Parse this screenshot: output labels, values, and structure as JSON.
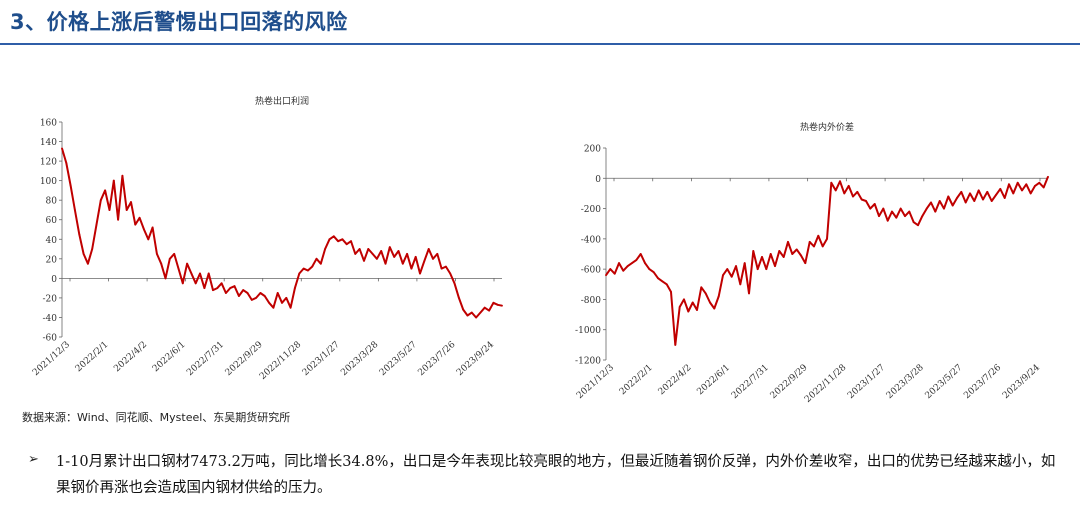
{
  "page": {
    "title": "3、价格上涨后警惕出口回落的风险",
    "source": "数据来源：Wind、同花顺、Mysteel、东吴期货研究所",
    "bullet_symbol": "➢",
    "paragraph": "1-10月累计出口钢材7473.2万吨，同比增长34.8%，出口是今年表现比较亮眼的地方，但最近随着钢价反弹，内外价差收窄，出口的优势已经越来越小，如果钢价再涨也会造成国内钢材供给的压力。"
  },
  "colors": {
    "title": "#1f4e8c",
    "line": "#c00000",
    "axis": "#555555"
  },
  "chart_data": [
    {
      "type": "line",
      "title": "热卷出口利润",
      "ylim": [
        -60,
        160
      ],
      "yticks": [
        -60,
        -40,
        -20,
        0,
        20,
        40,
        60,
        80,
        100,
        120,
        140,
        160
      ],
      "xticks": [
        "2021/12/3",
        "2022/2/1",
        "2022/4/2",
        "2022/6/1",
        "2022/7/31",
        "2022/9/29",
        "2022/11/28",
        "2023/1/27",
        "2023/3/28",
        "2023/5/27",
        "2023/7/26",
        "2023/9/24"
      ],
      "x_range": [
        "2021-12-03",
        "2023-11-17"
      ],
      "series": [
        {
          "points": [
            [
              "2021-12-03",
              133
            ],
            [
              "2021-12-10",
              118
            ],
            [
              "2021-12-17",
              95
            ],
            [
              "2021-12-24",
              70
            ],
            [
              "2021-12-31",
              45
            ],
            [
              "2022-01-07",
              25
            ],
            [
              "2022-01-14",
              15
            ],
            [
              "2022-01-21",
              30
            ],
            [
              "2022-01-28",
              55
            ],
            [
              "2022-02-04",
              80
            ],
            [
              "2022-02-11",
              90
            ],
            [
              "2022-02-18",
              70
            ],
            [
              "2022-02-25",
              100
            ],
            [
              "2022-03-04",
              60
            ],
            [
              "2022-03-11",
              105
            ],
            [
              "2022-03-18",
              70
            ],
            [
              "2022-03-25",
              78
            ],
            [
              "2022-04-01",
              55
            ],
            [
              "2022-04-08",
              62
            ],
            [
              "2022-04-15",
              50
            ],
            [
              "2022-04-22",
              40
            ],
            [
              "2022-04-29",
              52
            ],
            [
              "2022-05-06",
              25
            ],
            [
              "2022-05-13",
              15
            ],
            [
              "2022-05-20",
              0
            ],
            [
              "2022-05-27",
              20
            ],
            [
              "2022-06-03",
              25
            ],
            [
              "2022-06-10",
              10
            ],
            [
              "2022-06-17",
              -5
            ],
            [
              "2022-06-24",
              15
            ],
            [
              "2022-07-01",
              5
            ],
            [
              "2022-07-08",
              -5
            ],
            [
              "2022-07-15",
              5
            ],
            [
              "2022-07-22",
              -10
            ],
            [
              "2022-07-29",
              5
            ],
            [
              "2022-08-05",
              -12
            ],
            [
              "2022-08-12",
              -10
            ],
            [
              "2022-08-19",
              -5
            ],
            [
              "2022-08-26",
              -15
            ],
            [
              "2022-09-02",
              -10
            ],
            [
              "2022-09-09",
              -8
            ],
            [
              "2022-09-16",
              -18
            ],
            [
              "2022-09-23",
              -12
            ],
            [
              "2022-09-30",
              -15
            ],
            [
              "2022-10-07",
              -22
            ],
            [
              "2022-10-14",
              -20
            ],
            [
              "2022-10-21",
              -15
            ],
            [
              "2022-10-28",
              -18
            ],
            [
              "2022-11-04",
              -25
            ],
            [
              "2022-11-11",
              -30
            ],
            [
              "2022-11-18",
              -15
            ],
            [
              "2022-11-25",
              -25
            ],
            [
              "2022-12-02",
              -20
            ],
            [
              "2022-12-09",
              -30
            ],
            [
              "2022-12-16",
              -10
            ],
            [
              "2022-12-23",
              5
            ],
            [
              "2022-12-30",
              10
            ],
            [
              "2023-01-06",
              8
            ],
            [
              "2023-01-13",
              12
            ],
            [
              "2023-01-20",
              20
            ],
            [
              "2023-01-27",
              15
            ],
            [
              "2023-02-03",
              30
            ],
            [
              "2023-02-10",
              40
            ],
            [
              "2023-02-17",
              43
            ],
            [
              "2023-02-24",
              38
            ],
            [
              "2023-03-03",
              40
            ],
            [
              "2023-03-10",
              35
            ],
            [
              "2023-03-17",
              38
            ],
            [
              "2023-03-24",
              25
            ],
            [
              "2023-03-31",
              30
            ],
            [
              "2023-04-07",
              18
            ],
            [
              "2023-04-14",
              30
            ],
            [
              "2023-04-21",
              25
            ],
            [
              "2023-04-28",
              20
            ],
            [
              "2023-05-05",
              28
            ],
            [
              "2023-05-12",
              15
            ],
            [
              "2023-05-19",
              32
            ],
            [
              "2023-05-26",
              22
            ],
            [
              "2023-06-02",
              28
            ],
            [
              "2023-06-09",
              15
            ],
            [
              "2023-06-16",
              25
            ],
            [
              "2023-06-23",
              10
            ],
            [
              "2023-06-30",
              22
            ],
            [
              "2023-07-07",
              5
            ],
            [
              "2023-07-14",
              18
            ],
            [
              "2023-07-21",
              30
            ],
            [
              "2023-07-28",
              20
            ],
            [
              "2023-08-04",
              25
            ],
            [
              "2023-08-11",
              10
            ],
            [
              "2023-08-18",
              12
            ],
            [
              "2023-08-25",
              5
            ],
            [
              "2023-09-01",
              -5
            ],
            [
              "2023-09-08",
              -20
            ],
            [
              "2023-09-15",
              -32
            ],
            [
              "2023-09-22",
              -38
            ],
            [
              "2023-09-29",
              -35
            ],
            [
              "2023-10-06",
              -40
            ],
            [
              "2023-10-13",
              -35
            ],
            [
              "2023-10-20",
              -30
            ],
            [
              "2023-10-27",
              -33
            ],
            [
              "2023-11-03",
              -25
            ],
            [
              "2023-11-10",
              -27
            ],
            [
              "2023-11-17",
              -28
            ]
          ]
        }
      ]
    },
    {
      "type": "line",
      "title": "热卷内外价差",
      "ylim": [
        -1200,
        200
      ],
      "yticks": [
        -1200,
        -1000,
        -800,
        -600,
        -400,
        -200,
        0,
        200
      ],
      "xticks": [
        "2021/12/3",
        "2022/2/1",
        "2022/4/2",
        "2022/6/1",
        "2022/7/31",
        "2022/9/29",
        "2022/11/28",
        "2023/1/27",
        "2023/3/28",
        "2023/5/27",
        "2023/7/26",
        "2023/9/24"
      ],
      "x_range": [
        "2021-12-03",
        "2023-11-17"
      ],
      "series": [
        {
          "points": [
            [
              "2021-12-03",
              -640
            ],
            [
              "2021-12-10",
              -600
            ],
            [
              "2021-12-17",
              -630
            ],
            [
              "2021-12-24",
              -560
            ],
            [
              "2021-12-31",
              -610
            ],
            [
              "2022-01-07",
              -580
            ],
            [
              "2022-01-14",
              -560
            ],
            [
              "2022-01-21",
              -540
            ],
            [
              "2022-01-28",
              -500
            ],
            [
              "2022-02-04",
              -560
            ],
            [
              "2022-02-11",
              -600
            ],
            [
              "2022-02-18",
              -620
            ],
            [
              "2022-02-25",
              -660
            ],
            [
              "2022-03-04",
              -680
            ],
            [
              "2022-03-11",
              -700
            ],
            [
              "2022-03-18",
              -750
            ],
            [
              "2022-03-25",
              -1100
            ],
            [
              "2022-04-01",
              -850
            ],
            [
              "2022-04-08",
              -800
            ],
            [
              "2022-04-15",
              -880
            ],
            [
              "2022-04-22",
              -820
            ],
            [
              "2022-04-29",
              -870
            ],
            [
              "2022-05-06",
              -720
            ],
            [
              "2022-05-13",
              -760
            ],
            [
              "2022-05-20",
              -820
            ],
            [
              "2022-05-27",
              -860
            ],
            [
              "2022-06-03",
              -780
            ],
            [
              "2022-06-10",
              -640
            ],
            [
              "2022-06-17",
              -600
            ],
            [
              "2022-06-24",
              -650
            ],
            [
              "2022-07-01",
              -580
            ],
            [
              "2022-07-08",
              -700
            ],
            [
              "2022-07-15",
              -560
            ],
            [
              "2022-07-22",
              -760
            ],
            [
              "2022-07-29",
              -480
            ],
            [
              "2022-08-05",
              -600
            ],
            [
              "2022-08-12",
              -520
            ],
            [
              "2022-08-19",
              -600
            ],
            [
              "2022-08-26",
              -500
            ],
            [
              "2022-09-02",
              -580
            ],
            [
              "2022-09-09",
              -480
            ],
            [
              "2022-09-16",
              -520
            ],
            [
              "2022-09-23",
              -420
            ],
            [
              "2022-09-30",
              -500
            ],
            [
              "2022-10-07",
              -470
            ],
            [
              "2022-10-14",
              -510
            ],
            [
              "2022-10-21",
              -560
            ],
            [
              "2022-10-28",
              -420
            ],
            [
              "2022-11-04",
              -450
            ],
            [
              "2022-11-11",
              -380
            ],
            [
              "2022-11-18",
              -450
            ],
            [
              "2022-11-25",
              -400
            ],
            [
              "2022-12-02",
              -30
            ],
            [
              "2022-12-09",
              -80
            ],
            [
              "2022-12-16",
              -20
            ],
            [
              "2022-12-23",
              -100
            ],
            [
              "2022-12-30",
              -50
            ],
            [
              "2023-01-06",
              -120
            ],
            [
              "2023-01-13",
              -90
            ],
            [
              "2023-01-20",
              -140
            ],
            [
              "2023-01-27",
              -150
            ],
            [
              "2023-02-03",
              -200
            ],
            [
              "2023-02-10",
              -170
            ],
            [
              "2023-02-17",
              -250
            ],
            [
              "2023-02-24",
              -200
            ],
            [
              "2023-03-03",
              -280
            ],
            [
              "2023-03-10",
              -220
            ],
            [
              "2023-03-17",
              -260
            ],
            [
              "2023-03-24",
              -200
            ],
            [
              "2023-03-31",
              -250
            ],
            [
              "2023-04-07",
              -220
            ],
            [
              "2023-04-14",
              -290
            ],
            [
              "2023-04-21",
              -310
            ],
            [
              "2023-04-28",
              -250
            ],
            [
              "2023-05-05",
              -200
            ],
            [
              "2023-05-12",
              -160
            ],
            [
              "2023-05-19",
              -220
            ],
            [
              "2023-05-26",
              -150
            ],
            [
              "2023-06-02",
              -200
            ],
            [
              "2023-06-09",
              -120
            ],
            [
              "2023-06-16",
              -180
            ],
            [
              "2023-06-23",
              -130
            ],
            [
              "2023-06-30",
              -90
            ],
            [
              "2023-07-07",
              -160
            ],
            [
              "2023-07-14",
              -100
            ],
            [
              "2023-07-21",
              -150
            ],
            [
              "2023-07-28",
              -80
            ],
            [
              "2023-08-04",
              -140
            ],
            [
              "2023-08-11",
              -90
            ],
            [
              "2023-08-18",
              -150
            ],
            [
              "2023-08-25",
              -110
            ],
            [
              "2023-09-01",
              -70
            ],
            [
              "2023-09-08",
              -130
            ],
            [
              "2023-09-15",
              -40
            ],
            [
              "2023-09-22",
              -100
            ],
            [
              "2023-09-29",
              -30
            ],
            [
              "2023-10-06",
              -80
            ],
            [
              "2023-10-13",
              -40
            ],
            [
              "2023-10-20",
              -100
            ],
            [
              "2023-10-27",
              -50
            ],
            [
              "2023-11-03",
              -30
            ],
            [
              "2023-11-10",
              -60
            ],
            [
              "2023-11-17",
              10
            ]
          ]
        }
      ]
    }
  ]
}
